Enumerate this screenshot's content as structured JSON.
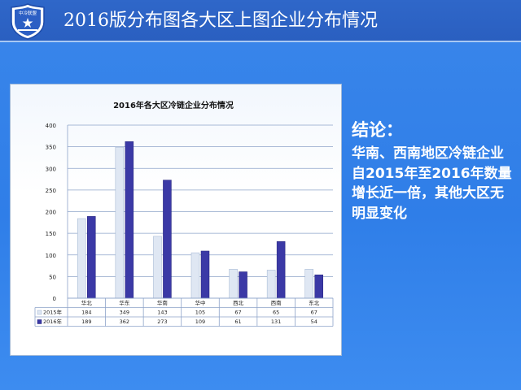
{
  "header": {
    "title": "2016版分布图各大区上图企业分布情况"
  },
  "logo": {
    "icon": "shield-logo-icon",
    "text": "中冷联盟"
  },
  "conclusion": {
    "heading": "结论：",
    "body": "华南、西南地区冷链企业自2015年至2016年数量增长近一倍，其他大区无明显变化"
  },
  "colors": {
    "series2015": "#dfe7f3",
    "series2016": "#3b39a6",
    "header_bg": "#2a5fc0"
  },
  "chart_data": {
    "type": "bar",
    "title": "2016年各大区冷链企业分布情况",
    "categories": [
      "华北",
      "华东",
      "华南",
      "华中",
      "西北",
      "西南",
      "东北"
    ],
    "series": [
      {
        "name": "2015年",
        "values": [
          184,
          349,
          143,
          105,
          67,
          65,
          67
        ]
      },
      {
        "name": "2016年",
        "values": [
          189,
          362,
          273,
          109,
          61,
          131,
          54
        ]
      }
    ],
    "ylim": [
      0,
      400
    ],
    "yticks": [
      0,
      50,
      100,
      150,
      200,
      250,
      300,
      350,
      400
    ],
    "grid": true,
    "legend": "data-table"
  }
}
